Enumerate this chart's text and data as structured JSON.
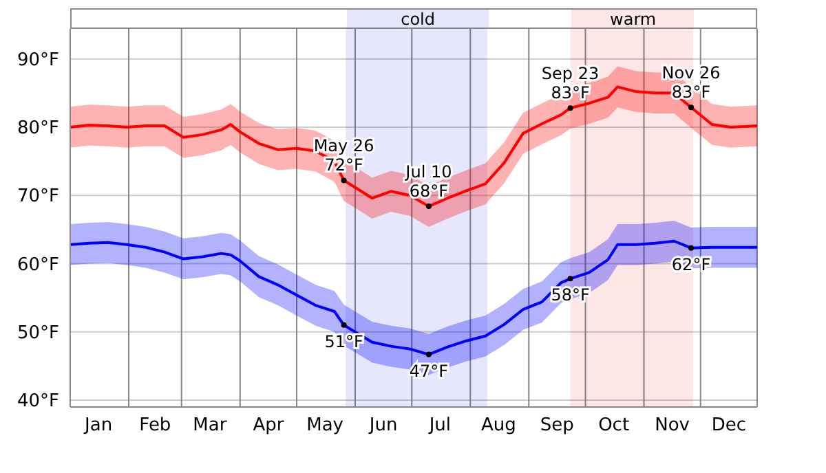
{
  "chart_data": {
    "type": "line",
    "x": [
      "--01-01",
      "--01-11",
      "--01-21",
      "--01-31",
      "--02-10",
      "--02-20",
      "--03-02",
      "--03-12",
      "--03-22",
      "--03-27",
      "--04-01",
      "--04-11",
      "--04-21",
      "--05-01",
      "--05-11",
      "--05-21",
      "--05-26",
      "--06-10",
      "--06-20",
      "--06-30",
      "--07-10",
      "--07-20",
      "--07-30",
      "--08-09",
      "--08-19",
      "--08-29",
      "--09-08",
      "--09-18",
      "--09-23",
      "--10-03",
      "--10-13",
      "--10-18",
      "--10-28",
      "--11-07",
      "--11-17",
      "--11-26",
      "--12-07",
      "--12-17",
      "--12-31"
    ],
    "xlim": [
      "--01-01",
      "--12-31"
    ],
    "xticks": [
      {
        "value": "--01-01",
        "label": null
      },
      {
        "value": "--01-16",
        "label": "Jan"
      },
      {
        "value": "--02-01",
        "label": null
      },
      {
        "value": "--02-15",
        "label": "Feb"
      },
      {
        "value": "--03-01",
        "label": null
      },
      {
        "value": "--03-16",
        "label": "Mar"
      },
      {
        "value": "--04-01",
        "label": null
      },
      {
        "value": "--04-16",
        "label": "Apr"
      },
      {
        "value": "--05-01",
        "label": null
      },
      {
        "value": "--05-16",
        "label": "May"
      },
      {
        "value": "--06-01",
        "label": null
      },
      {
        "value": "--06-16",
        "label": "Jun"
      },
      {
        "value": "--07-01",
        "label": null
      },
      {
        "value": "--07-16",
        "label": "Jul"
      },
      {
        "value": "--08-01",
        "label": null
      },
      {
        "value": "--08-16",
        "label": "Aug"
      },
      {
        "value": "--09-01",
        "label": null
      },
      {
        "value": "--09-16",
        "label": "Sep"
      },
      {
        "value": "--10-01",
        "label": null
      },
      {
        "value": "--10-16",
        "label": "Oct"
      },
      {
        "value": "--11-01",
        "label": null
      },
      {
        "value": "--11-16",
        "label": "Nov"
      },
      {
        "value": "--12-01",
        "label": null
      },
      {
        "value": "--12-16",
        "label": "Dec"
      },
      {
        "value": "--12-31",
        "label": null
      }
    ],
    "ylim": [
      39,
      94.4
    ],
    "yticks": [
      {
        "value": 40,
        "label": "40°F"
      },
      {
        "value": 50,
        "label": "50°F"
      },
      {
        "value": 60,
        "label": "60°F"
      },
      {
        "value": 70,
        "label": "70°F"
      },
      {
        "value": 80,
        "label": "80°F"
      },
      {
        "value": 90,
        "label": "90°F"
      }
    ],
    "grid": true,
    "marker": "none",
    "line_style": "solid",
    "series": [
      {
        "color": "#ff0000",
        "values": [
          80,
          80.3,
          80.2,
          80,
          80.2,
          80.2,
          78.5,
          78.9,
          79.6,
          80.4,
          79.3,
          77.6,
          76.7,
          76.9,
          76.5,
          75,
          72.2,
          69.6,
          70.6,
          70,
          68.4,
          69.6,
          70.7,
          71.7,
          74.8,
          79.1,
          80.5,
          81.8,
          82.8,
          83.5,
          84.4,
          85.9,
          85.2,
          85,
          85,
          82.9,
          80.4,
          80,
          80.2
        ],
        "lower": [
          77,
          77.3,
          77.2,
          77,
          77.2,
          77.2,
          75.5,
          75.9,
          76.6,
          77.4,
          76.3,
          74.6,
          73.7,
          73.9,
          73.5,
          72,
          69.2,
          66.6,
          67.6,
          67,
          65.4,
          66.6,
          67.7,
          68.7,
          71.8,
          76.1,
          77.5,
          78.8,
          79.8,
          80.5,
          81.4,
          82.9,
          82.2,
          82,
          82,
          79.9,
          77.4,
          77,
          77.2
        ],
        "upper": [
          83,
          83.3,
          83.2,
          83,
          83.2,
          83.2,
          81.5,
          81.9,
          82.6,
          83.4,
          82.3,
          80.6,
          79.7,
          79.9,
          79.5,
          78,
          75.2,
          72.6,
          73.6,
          73,
          71.4,
          72.6,
          73.7,
          74.7,
          77.8,
          82.1,
          83.5,
          84.8,
          85.8,
          86.5,
          87.4,
          88.9,
          88.2,
          88,
          88,
          85.9,
          83.4,
          83,
          83.2
        ]
      },
      {
        "color": "#0000ff",
        "values": [
          62.8,
          63,
          63.1,
          62.8,
          62.4,
          61.7,
          60.7,
          61,
          61.5,
          61.3,
          60.4,
          58.1,
          56.9,
          55.4,
          53.9,
          53,
          51,
          48.5,
          47.9,
          47.5,
          46.7,
          47.8,
          48.7,
          49.4,
          51.1,
          53.3,
          54.4,
          57.2,
          57.8,
          58.7,
          60.6,
          62.8,
          62.8,
          63,
          63.3,
          62.3,
          62.4,
          62.4,
          62.4
        ],
        "lower": [
          59.8,
          60,
          60.1,
          59.8,
          59.4,
          58.7,
          57.7,
          58,
          58.5,
          58.3,
          57.4,
          55.1,
          53.9,
          52.4,
          50.9,
          50,
          48,
          45.5,
          44.9,
          44.5,
          43.7,
          44.8,
          45.7,
          46.4,
          48.1,
          50.3,
          51.4,
          54.2,
          54.8,
          55.7,
          57.6,
          59.8,
          59.8,
          60,
          60.3,
          59.3,
          59.4,
          59.4,
          59.4
        ],
        "upper": [
          65.8,
          66,
          66.1,
          65.8,
          65.4,
          64.7,
          63.7,
          64,
          64.5,
          64.3,
          63.4,
          61.1,
          59.9,
          58.4,
          56.9,
          56,
          54,
          51.5,
          50.9,
          50.5,
          49.7,
          50.8,
          51.7,
          52.4,
          54.1,
          56.3,
          57.4,
          60.2,
          60.8,
          61.7,
          63.6,
          65.8,
          65.8,
          66,
          66.3,
          65.3,
          65.4,
          65.4,
          65.4
        ]
      }
    ],
    "bands": [
      {
        "axis": "x",
        "from": "--05-27",
        "to": "--08-10",
        "label": "cold",
        "color": "#e6e6fc"
      },
      {
        "axis": "x",
        "from": "--09-23",
        "to": "--11-27",
        "label": "warm",
        "color": "#fde6e6"
      }
    ],
    "annotations": [
      {
        "text": "May 26\n72°F",
        "x": "--05-26",
        "y": 72.2
      },
      {
        "text": "Jul 10\n68°F",
        "x": "--07-10",
        "y": 68.4
      },
      {
        "text": "Sep 23\n83°F",
        "x": "--09-23",
        "y": 82.8
      },
      {
        "text": "Nov 26\n83°F",
        "x": "--11-26",
        "y": 82.9
      },
      {
        "text": "51°F",
        "x": "--05-26",
        "y": 51
      },
      {
        "text": "47°F",
        "x": "--07-10",
        "y": 46.7
      },
      {
        "text": "58°F",
        "x": "--09-23",
        "y": 57.8
      },
      {
        "text": "62°F",
        "x": "--11-26",
        "y": 62.3
      }
    ]
  }
}
